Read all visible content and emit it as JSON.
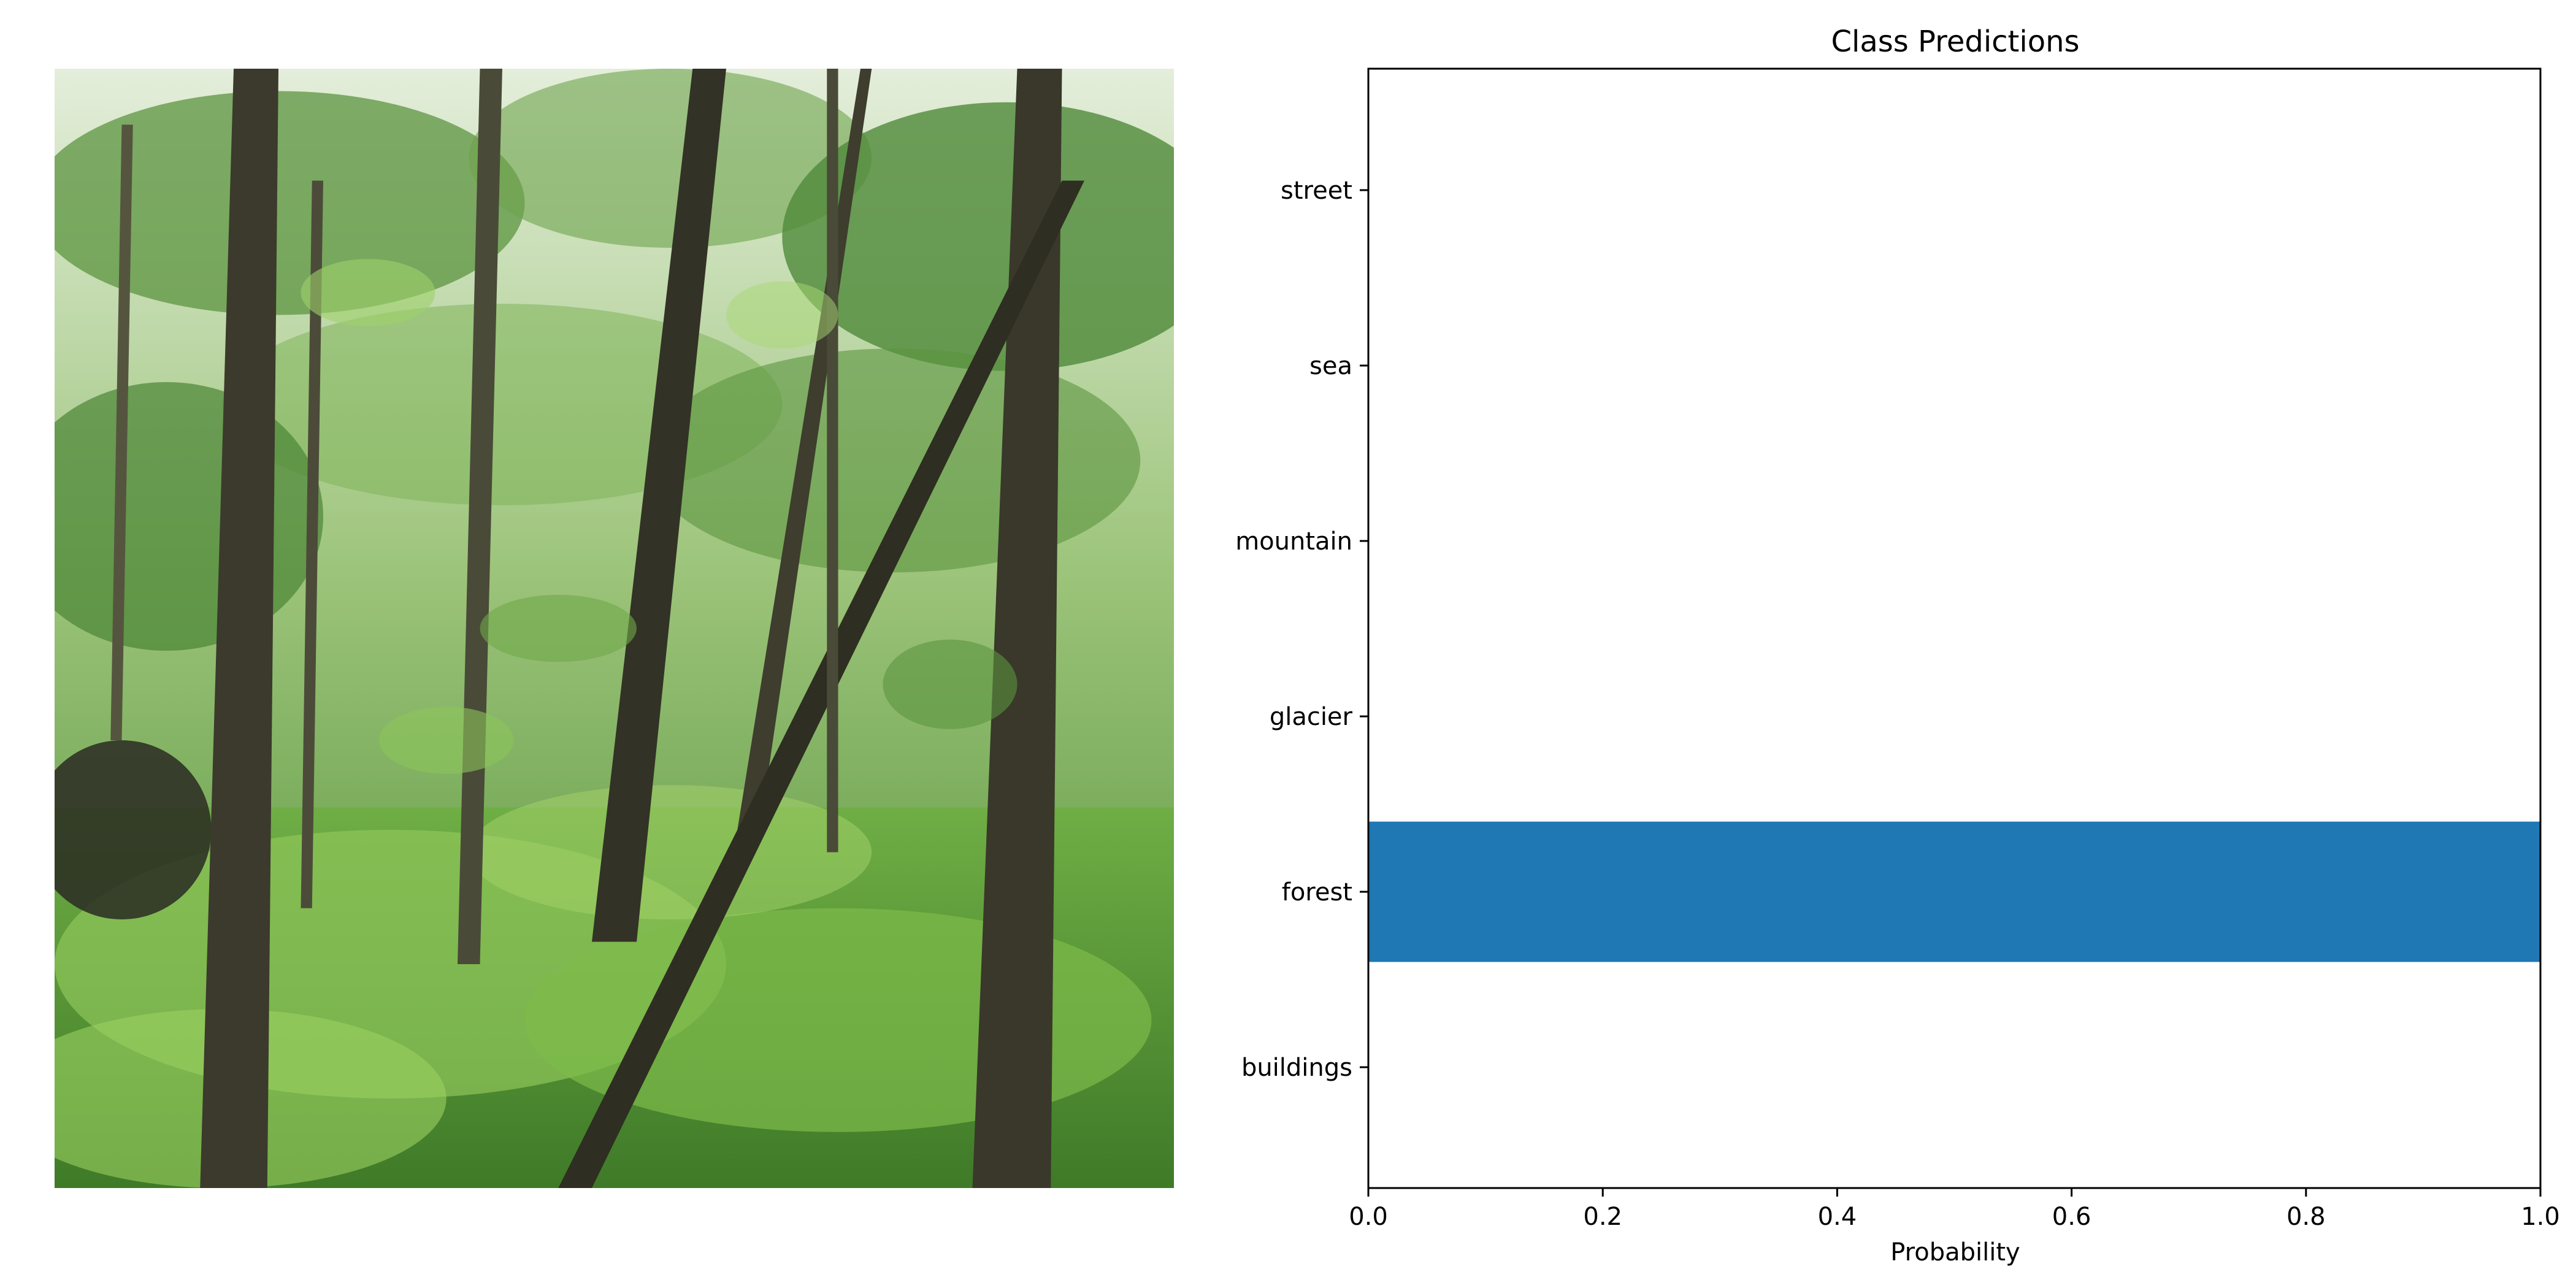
{
  "photo": {
    "colors": {
      "sky": "#d8e6c8",
      "canopy": "#4f8a3a",
      "foliage_light": "#8fc65a",
      "foliage_dark": "#2f5a24",
      "trunk": "#3a3a2c",
      "ground": "#5aa13a"
    }
  },
  "chart_data": {
    "type": "bar",
    "orientation": "horizontal",
    "title": "Class Predictions",
    "xlabel": "Probability",
    "ylabel": "",
    "categories": [
      "buildings",
      "forest",
      "glacier",
      "mountain",
      "sea",
      "street"
    ],
    "values": [
      0.0,
      1.0,
      0.0,
      0.0,
      0.0,
      0.0
    ],
    "xlim": [
      0.0,
      1.0
    ],
    "xticks": [
      "0.0",
      "0.2",
      "0.4",
      "0.6",
      "0.8",
      "1.0"
    ],
    "grid": false,
    "bar_color": "#1f77b4"
  }
}
